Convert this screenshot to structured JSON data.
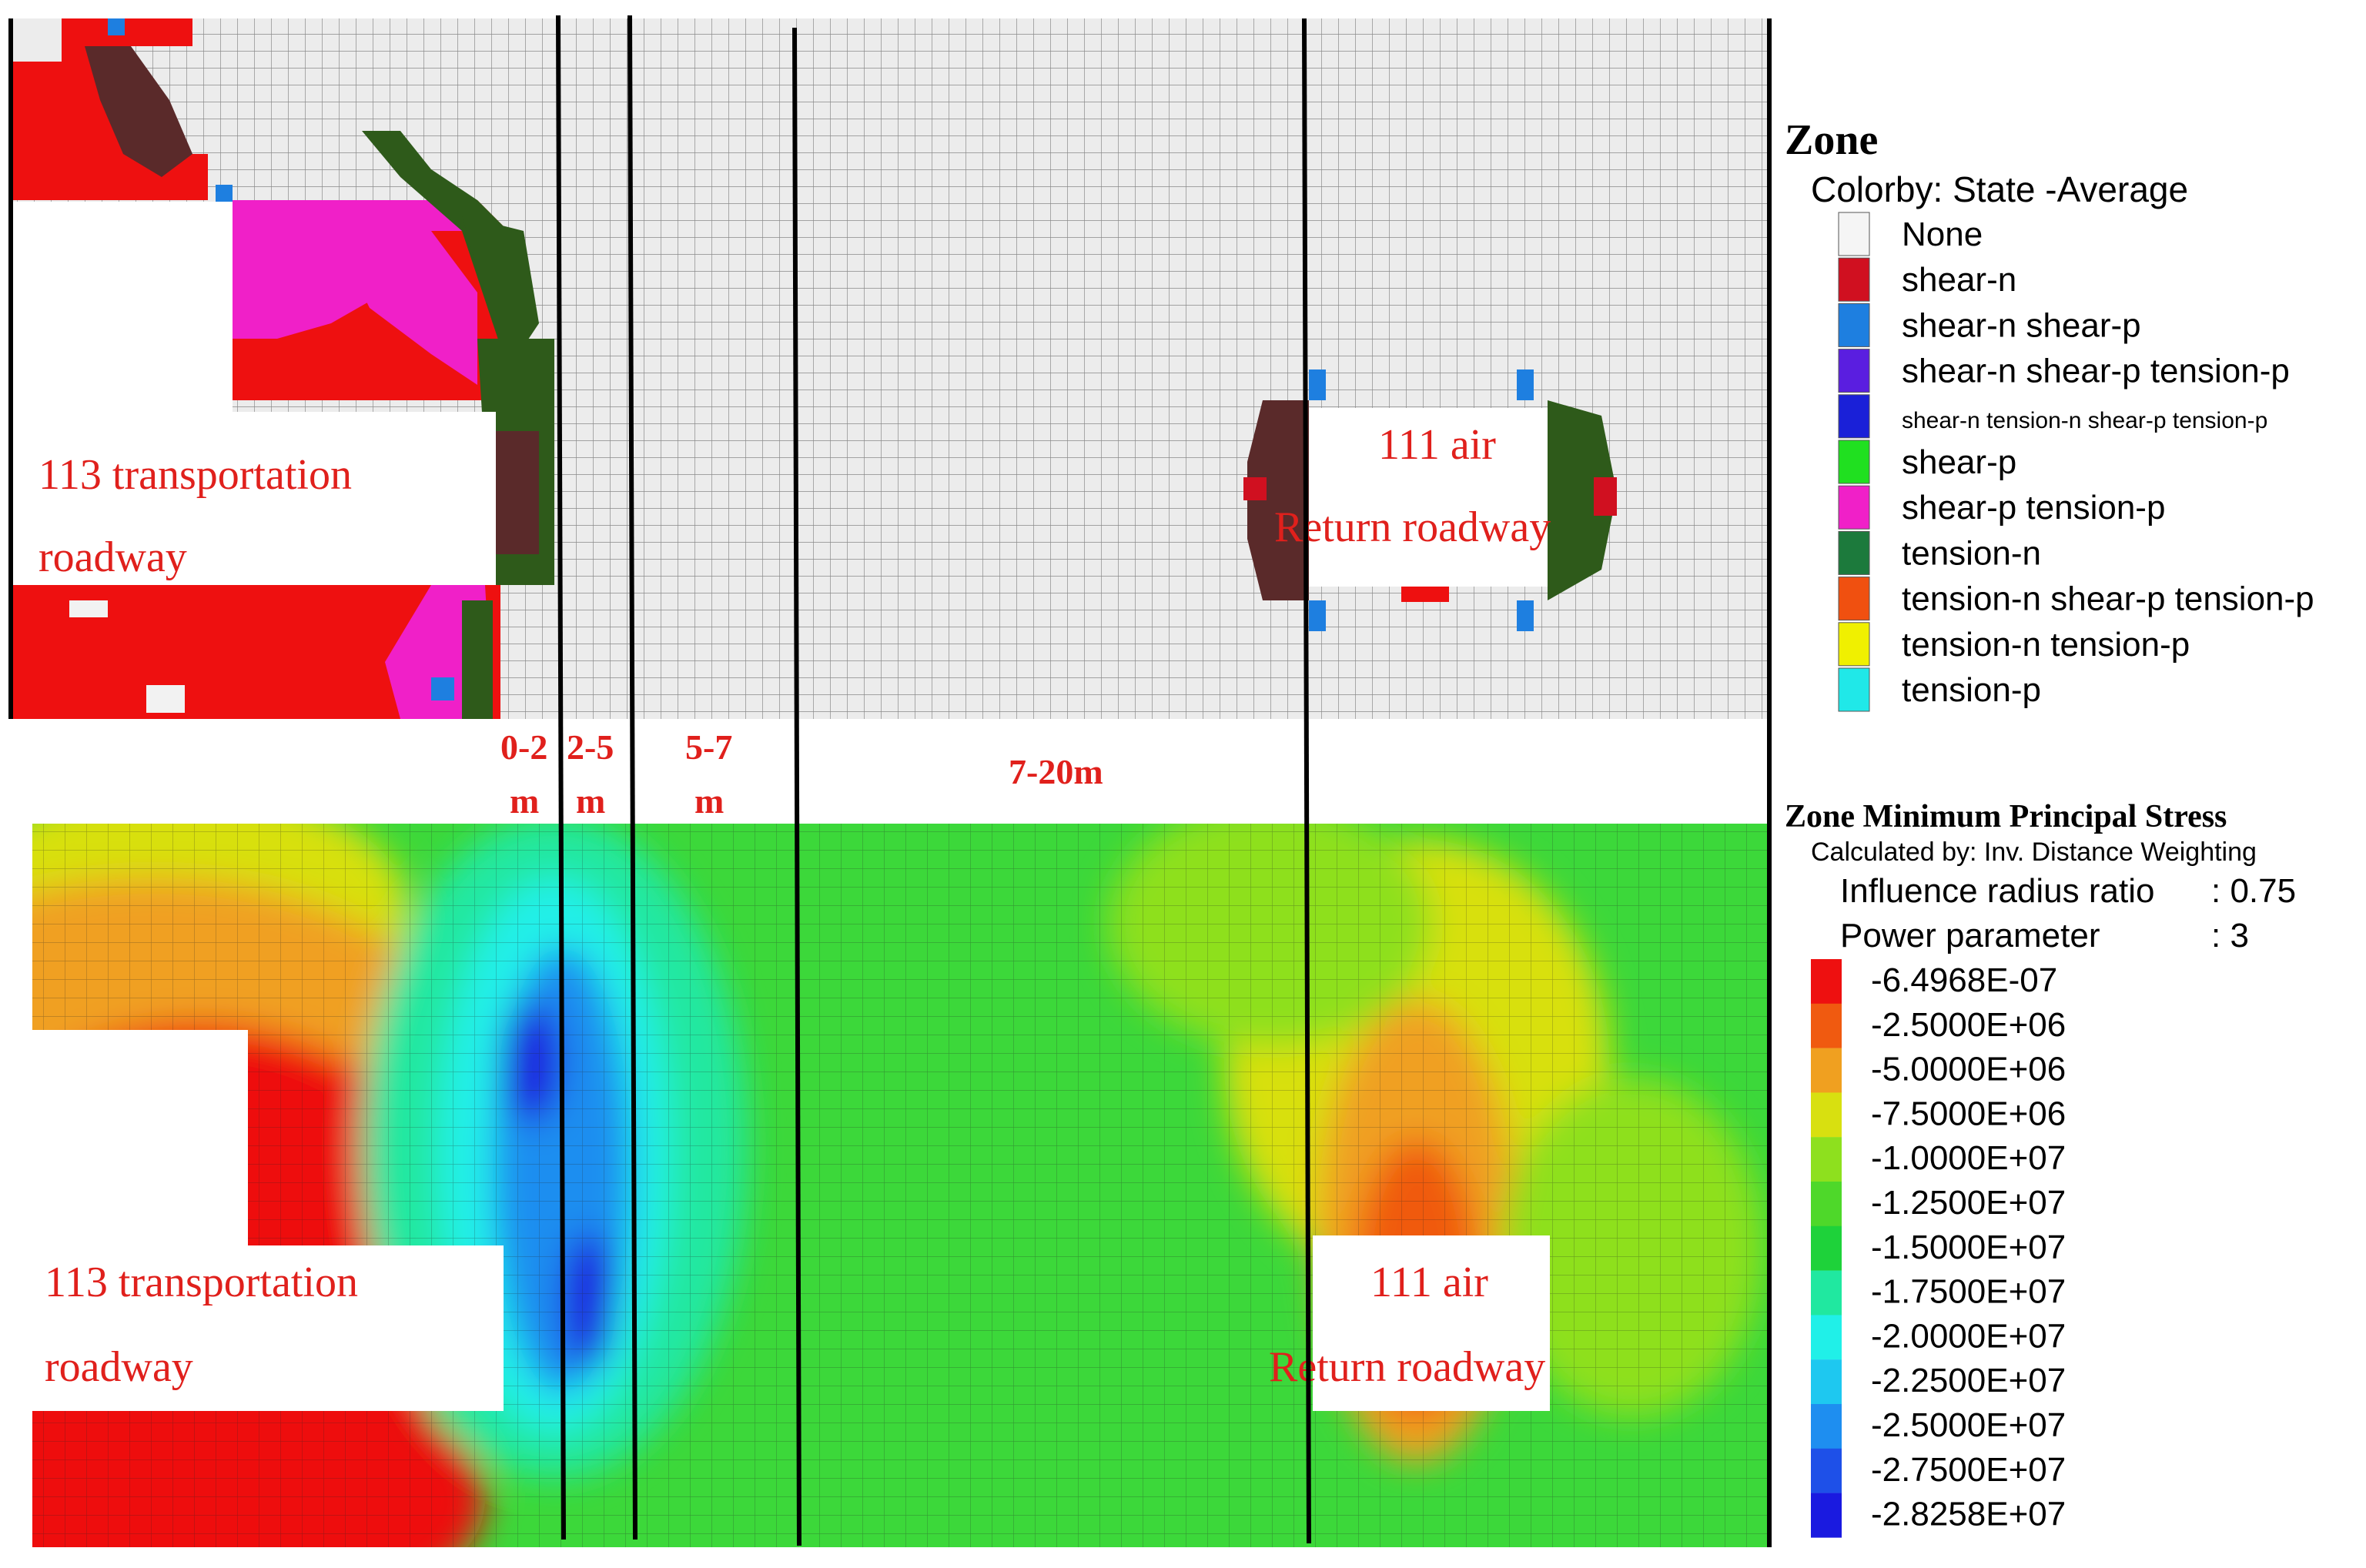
{
  "top_panel": {
    "left_roadway": {
      "line1": "113 transportation",
      "line2": "roadway"
    },
    "right_roadway": {
      "line1": "111 air",
      "line2": "Return roadway"
    }
  },
  "bottom_panel": {
    "left_roadway": {
      "line1": "113  transportation",
      "line2": "roadway"
    },
    "right_roadway": {
      "line1": "111 air",
      "line2": "Return roadway"
    }
  },
  "zones": [
    {
      "top": "0-2",
      "bottom": "m"
    },
    {
      "top": "2-5",
      "bottom": "m"
    },
    {
      "top": "5-7",
      "bottom": "m"
    },
    {
      "top": "7-20m",
      "bottom": ""
    }
  ],
  "state_legend": {
    "title": "Zone",
    "subtitle": "Colorby: State  -Average",
    "items": [
      {
        "label": "None",
        "color": "#f5f5f5"
      },
      {
        "label": "shear-n",
        "color": "#d01020"
      },
      {
        "label": "shear-n shear-p",
        "color": "#1e7fe0"
      },
      {
        "label": "shear-n shear-p tension-p",
        "color": "#5a1ee0"
      },
      {
        "label": "shear-n tension-n shear-p tension-p",
        "color": "#1a20d8"
      },
      {
        "label": "shear-p",
        "color": "#20e020"
      },
      {
        "label": "shear-p tension-p",
        "color": "#f020c8"
      },
      {
        "label": "tension-n",
        "color": "#1c7a3c"
      },
      {
        "label": "tension-n shear-p tension-p",
        "color": "#f05010"
      },
      {
        "label": "tension-n tension-p",
        "color": "#f0f000"
      },
      {
        "label": "tension-p",
        "color": "#20e8e8"
      }
    ]
  },
  "stress_legend": {
    "title": "Zone Minimum Principal Stress",
    "calc": "Calculated by: Inv. Distance Weighting",
    "radius_label": "Influence radius ratio",
    "radius_value": ": 0.75",
    "power_label": "Power parameter",
    "power_value": ": 3",
    "items": [
      {
        "label": "-6.4968E-07",
        "color": "#ee1010"
      },
      {
        "label": "-2.5000E+06",
        "color": "#f05a10"
      },
      {
        "label": "-5.0000E+06",
        "color": "#f0a020"
      },
      {
        "label": "-7.5000E+06",
        "color": "#d8e010"
      },
      {
        "label": "-1.0000E+07",
        "color": "#8ee01e"
      },
      {
        "label": "-1.2500E+07",
        "color": "#4ed82a"
      },
      {
        "label": "-1.5000E+07",
        "color": "#1ed23a"
      },
      {
        "label": "-1.7500E+07",
        "color": "#20e8a0"
      },
      {
        "label": "-2.0000E+07",
        "color": "#20f0e8"
      },
      {
        "label": "-2.2500E+07",
        "color": "#1ec8f0"
      },
      {
        "label": "-2.5000E+07",
        "color": "#1e8ef0"
      },
      {
        "label": "-2.7500E+07",
        "color": "#1e50e8"
      },
      {
        "label": "-2.8258E+07",
        "color": "#1a1ae0"
      }
    ]
  }
}
